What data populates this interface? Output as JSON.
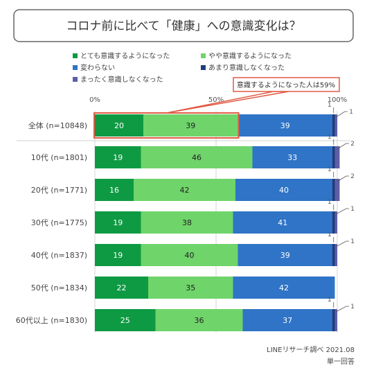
{
  "title": "コロナ前に比べて「健康」への意識変化は？",
  "callout": "意識するようになった人は59%",
  "source": "LINEリサーチ調べ 2021.08",
  "note": "単一回答",
  "colors": {
    "s1": "#0e9a43",
    "s2": "#6fd46a",
    "s3": "#2f74c6",
    "s4": "#203c7c",
    "s5": "#5c5ea6",
    "callout_border": "#e05a45"
  },
  "chart_data": {
    "type": "bar",
    "orientation": "horizontal",
    "stacked": true,
    "xlim": [
      0,
      100
    ],
    "xticks": [
      "0%",
      "50%",
      "100%"
    ],
    "categories": [
      "全体 (n=10848)",
      "10代 (n=1801)",
      "20代 (n=1771)",
      "30代 (n=1775)",
      "40代 (n=1837)",
      "50代 (n=1834)",
      "60代以上 (n=1830)"
    ],
    "series": [
      {
        "name": "とても意識するようになった",
        "values": [
          20,
          19,
          16,
          19,
          19,
          22,
          25
        ]
      },
      {
        "name": "やや意識するようになった",
        "values": [
          39,
          46,
          42,
          38,
          40,
          35,
          36
        ]
      },
      {
        "name": "変わらない",
        "values": [
          39,
          33,
          40,
          41,
          39,
          42,
          37
        ]
      },
      {
        "name": "あまり意識しなくなった",
        "values": [
          1,
          1,
          1,
          1,
          1,
          0,
          1
        ]
      },
      {
        "name": "まったく意識しなくなった",
        "values": [
          1,
          2,
          2,
          1,
          1,
          0,
          1
        ]
      }
    ],
    "legend_position": "top",
    "grid": true
  }
}
